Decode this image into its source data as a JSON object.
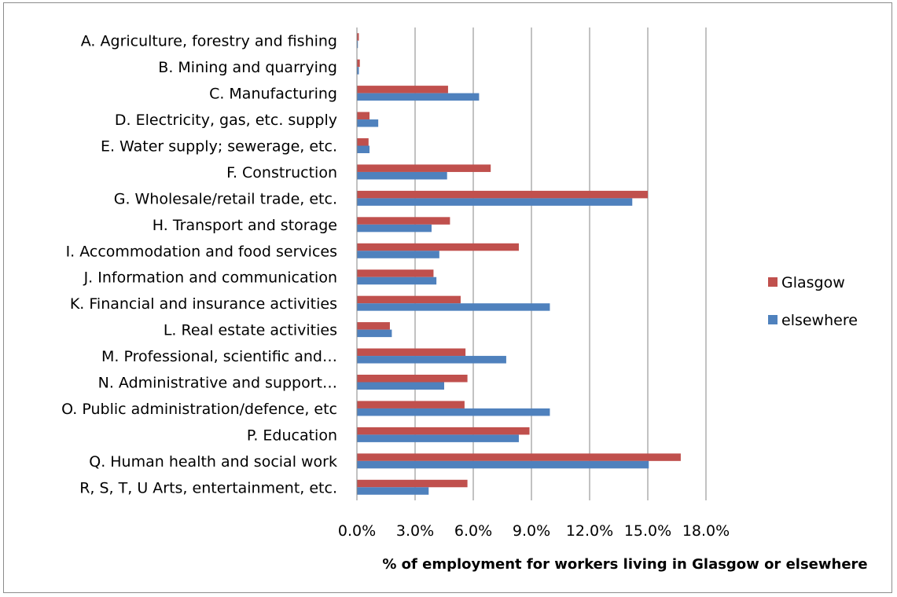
{
  "chart_data": {
    "type": "bar",
    "orientation": "horizontal",
    "title": "",
    "xlabel": "% of employment for workers living in Glasgow or elsewhere",
    "ylabel": "",
    "xlim": [
      0,
      18
    ],
    "x_ticks": [
      0,
      3,
      6,
      9,
      12,
      15,
      18
    ],
    "x_tick_labels": [
      "0.0%",
      "3.0%",
      "6.0%",
      "9.0%",
      "12.0%",
      "15.0%",
      "18.0%"
    ],
    "grid": "vertical major gridlines",
    "legend_position": "right",
    "categories": [
      "A. Agriculture, forestry and fishing",
      "B. Mining and quarrying",
      "C. Manufacturing",
      "D. Electricity, gas, etc. supply",
      "E. Water supply; sewerage,  etc.",
      "F. Construction",
      "G. Wholesale/retail trade, etc.",
      "H. Transport and storage",
      "I. Accommodation and food services",
      "J. Information and communication",
      "K. Financial and insurance activities",
      "L. Real estate activities",
      "M. Professional, scientific and…",
      "N. Administrative and support…",
      "O. Public administration/defence, etc",
      "P. Education",
      "Q. Human health and social work",
      "R, S, T, U Arts, entertainment, etc."
    ],
    "series": [
      {
        "name": "Glasgow",
        "color": "#c0504d",
        "values": [
          0.1,
          0.15,
          4.7,
          0.65,
          0.6,
          6.9,
          15.0,
          4.8,
          8.35,
          3.95,
          5.35,
          1.7,
          5.6,
          5.7,
          5.55,
          8.9,
          16.7,
          5.7
        ]
      },
      {
        "name": "elsewhere",
        "color": "#4f81bd",
        "values": [
          0.05,
          0.1,
          6.3,
          1.1,
          0.65,
          4.65,
          14.2,
          3.85,
          4.25,
          4.1,
          9.95,
          1.8,
          7.7,
          4.5,
          9.95,
          8.35,
          15.05,
          3.7
        ]
      }
    ]
  }
}
